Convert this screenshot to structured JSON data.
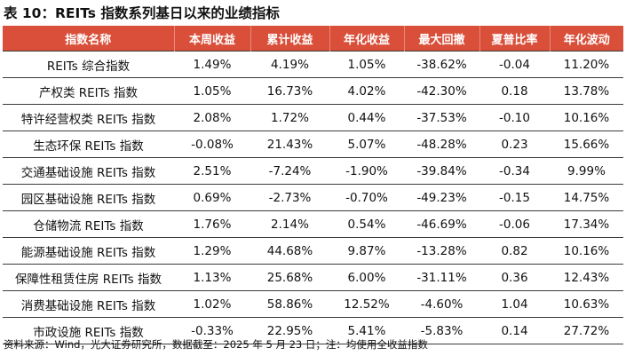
{
  "title": "表 10：REITs 指数系列基日以来的业绩指标",
  "table": {
    "headers": [
      "指数名称",
      "本周收益",
      "累计收益",
      "年化收益",
      "最大回撤",
      "夏普比率",
      "年化波动"
    ],
    "rows": [
      [
        "REITs 综合指数",
        "1.49%",
        "4.19%",
        "1.05%",
        "-38.62%",
        "-0.04",
        "11.20%"
      ],
      [
        "产权类 REITs 指数",
        "1.05%",
        "16.73%",
        "4.02%",
        "-42.30%",
        "0.18",
        "13.78%"
      ],
      [
        "特许经营权类 REITs 指数",
        "2.08%",
        "1.72%",
        "0.44%",
        "-37.53%",
        "-0.10",
        "10.16%"
      ],
      [
        "生态环保 REITs 指数",
        "-0.08%",
        "21.43%",
        "5.07%",
        "-48.28%",
        "0.23",
        "15.66%"
      ],
      [
        "交通基础设施 REITs 指数",
        "2.51%",
        "-7.24%",
        "-1.90%",
        "-39.84%",
        "-0.34",
        "9.99%"
      ],
      [
        "园区基础设施 REITs 指数",
        "0.69%",
        "-2.73%",
        "-0.70%",
        "-49.23%",
        "-0.15",
        "14.75%"
      ],
      [
        "仓储物流 REITs 指数",
        "1.76%",
        "2.14%",
        "0.54%",
        "-46.69%",
        "-0.06",
        "17.34%"
      ],
      [
        "能源基础设施 REITs 指数",
        "1.29%",
        "44.68%",
        "9.87%",
        "-13.28%",
        "0.82",
        "10.16%"
      ],
      [
        "保障性租赁住房 REITs 指数",
        "1.13%",
        "25.68%",
        "6.00%",
        "-31.11%",
        "0.36",
        "12.43%"
      ],
      [
        "消费基础设施 REITs 指数",
        "1.02%",
        "58.86%",
        "12.52%",
        "-4.60%",
        "1.04",
        "10.63%"
      ],
      [
        "市政设施 REITs 指数",
        "-0.33%",
        "22.95%",
        "5.41%",
        "-5.83%",
        "0.14",
        "27.72%"
      ]
    ]
  },
  "footer": "资料来源：Wind，光大证券研究所，数据截至：2025 年 5 月 23 日；注：均使用全收益指数",
  "colors": {
    "header_bg": "#d94f3a",
    "header_text": "#ffffff",
    "rule": "#3a3a3a"
  }
}
